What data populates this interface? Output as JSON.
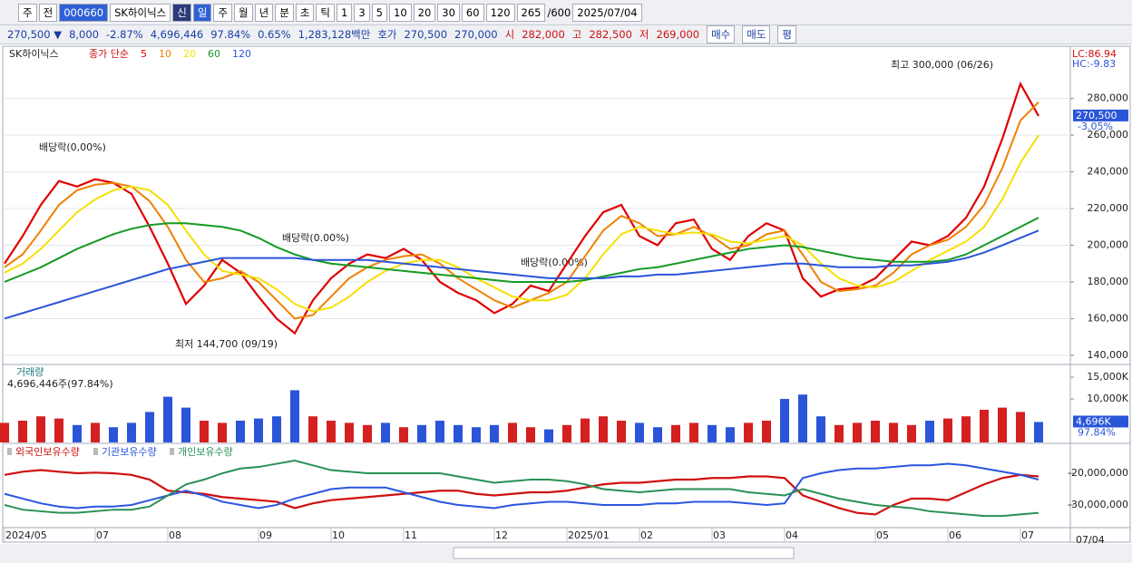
{
  "toolbar": {
    "items": [
      "주",
      "전",
      "000660",
      "SK하이닉스",
      "신",
      "일",
      "주",
      "월",
      "년",
      "분",
      "초",
      "틱",
      "1",
      "3",
      "5",
      "10",
      "20",
      "30",
      "60",
      "120"
    ],
    "count": "265",
    "total": "/600",
    "date": "2025/07/04"
  },
  "info_bar": {
    "items": [
      "270,500 ▼",
      "8,000",
      "-2.87%",
      "4,696,446",
      "97.84%",
      "0.65%",
      "1,283,128백만",
      "호가",
      "270,500",
      "270,000",
      "시",
      "282,000",
      "고",
      "282,500",
      "저",
      "269,000"
    ],
    "buttons": [
      "매수",
      "매도",
      "평"
    ]
  },
  "chart_data": [
    {
      "type": "line",
      "stock": "SK하이닉스",
      "legend_prefix": "종가 단순",
      "categories": [
        "2024/05",
        null,
        null,
        null,
        null,
        "07",
        null,
        null,
        null,
        "08",
        null,
        null,
        null,
        null,
        "09",
        null,
        null,
        null,
        "10",
        null,
        null,
        null,
        "11",
        null,
        null,
        null,
        null,
        "12",
        null,
        null,
        null,
        "2025/01",
        null,
        null,
        null,
        "02",
        null,
        null,
        null,
        "03",
        null,
        null,
        null,
        "04",
        null,
        null,
        null,
        null,
        "05",
        null,
        null,
        null,
        "06",
        null,
        null,
        null,
        "07",
        null
      ],
      "end_label": "07/04",
      "ylim": [
        136000,
        308000
      ],
      "yticks": [
        {
          "value": 140000,
          "label": "140,000"
        },
        {
          "value": 160000,
          "label": "160,000"
        },
        {
          "value": 180000,
          "label": "180,000"
        },
        {
          "value": 200000,
          "label": "200,000"
        },
        {
          "value": 220000,
          "label": "220,000"
        },
        {
          "value": 240000,
          "label": "240,000"
        },
        {
          "value": 260000,
          "label": "260,000"
        },
        {
          "value": 280000,
          "label": "280,000"
        }
      ],
      "grid": true,
      "current": {
        "value": 270500,
        "label": "270,500",
        "change": "-3.05%"
      },
      "corner_labels": [
        "LC:86.94",
        "HC:-9.83"
      ],
      "annotations": {
        "high": "최고 300,000 (06/26)",
        "low": "최저 144,700 (09/19)",
        "dividend": [
          "배당락(0,00%)",
          "배당락(0.00%)",
          "배당락(0.00%)"
        ]
      },
      "series": [
        {
          "name": "5",
          "color": "#e00000",
          "values": [
            190000,
            205000,
            222000,
            235000,
            232000,
            236000,
            234000,
            228000,
            210000,
            190000,
            168000,
            178000,
            192000,
            185000,
            172000,
            160000,
            152000,
            170000,
            182000,
            190000,
            195000,
            193000,
            198000,
            192000,
            180000,
            174000,
            170000,
            163000,
            168000,
            178000,
            175000,
            190000,
            205000,
            218000,
            222000,
            205000,
            200000,
            212000,
            214000,
            198000,
            192000,
            205000,
            212000,
            208000,
            182000,
            172000,
            176000,
            177000,
            182000,
            192000,
            202000,
            200000,
            205000,
            215000,
            232000,
            258000,
            288000,
            270500
          ]
        },
        {
          "name": "10",
          "color": "#f08000",
          "values": [
            188000,
            195000,
            208000,
            222000,
            230000,
            233000,
            234000,
            232000,
            224000,
            210000,
            192000,
            180000,
            182000,
            186000,
            180000,
            170000,
            160000,
            162000,
            172000,
            182000,
            188000,
            192000,
            194000,
            195000,
            190000,
            182000,
            176000,
            170000,
            166000,
            170000,
            174000,
            180000,
            194000,
            208000,
            216000,
            212000,
            205000,
            206000,
            210000,
            205000,
            198000,
            200000,
            206000,
            208000,
            195000,
            180000,
            175000,
            176000,
            178000,
            185000,
            195000,
            200000,
            203000,
            210000,
            222000,
            242000,
            268000,
            278000
          ]
        },
        {
          "name": "20",
          "color": "#f5e000",
          "values": [
            185000,
            190000,
            198000,
            208000,
            218000,
            225000,
            230000,
            232000,
            230000,
            222000,
            208000,
            195000,
            186000,
            184000,
            182000,
            176000,
            168000,
            164000,
            166000,
            172000,
            180000,
            186000,
            190000,
            192000,
            192000,
            188000,
            182000,
            177000,
            172000,
            170000,
            170000,
            173000,
            182000,
            195000,
            206000,
            210000,
            208000,
            206000,
            207000,
            206000,
            202000,
            201000,
            203000,
            205000,
            200000,
            190000,
            182000,
            178000,
            177000,
            180000,
            186000,
            192000,
            197000,
            202000,
            210000,
            225000,
            245000,
            260000
          ]
        },
        {
          "name": "60",
          "color": "#159a25",
          "values": [
            180000,
            184000,
            188000,
            193000,
            198000,
            202000,
            206000,
            209000,
            211000,
            212000,
            212000,
            211000,
            210000,
            208000,
            204000,
            199000,
            195000,
            192000,
            190000,
            189000,
            188000,
            187000,
            186000,
            185000,
            184000,
            183000,
            182000,
            181000,
            180000,
            180000,
            180000,
            180000,
            181000,
            183000,
            185000,
            187000,
            188000,
            190000,
            192000,
            194000,
            196000,
            198000,
            199000,
            200000,
            199000,
            197000,
            195000,
            193000,
            192000,
            191000,
            191000,
            191000,
            192000,
            195000,
            200000,
            205000,
            210000,
            215000
          ]
        },
        {
          "name": "120",
          "color": "#2a55d8",
          "values": [
            160000,
            163000,
            166000,
            169000,
            172000,
            175000,
            178000,
            181000,
            184000,
            187000,
            189000,
            191000,
            193000,
            193000,
            193000,
            193000,
            193000,
            192000,
            192000,
            192000,
            192000,
            191000,
            190000,
            189000,
            188000,
            187000,
            186000,
            185000,
            184000,
            183000,
            182000,
            182000,
            182000,
            182000,
            183000,
            183000,
            184000,
            184000,
            185000,
            186000,
            187000,
            188000,
            189000,
            190000,
            190000,
            189000,
            188000,
            188000,
            188000,
            189000,
            189000,
            190000,
            191000,
            193000,
            196000,
            200000,
            204000,
            208000
          ]
        }
      ]
    },
    {
      "type": "bar",
      "title": "거래량",
      "subtitle": "4,696,446주(97.84%)",
      "ylim": [
        0,
        17300
      ],
      "yticks": [
        {
          "value": 10000,
          "label": "10,000K"
        },
        {
          "value": 15000,
          "label": "15,000K"
        }
      ],
      "up_color": "#d42020",
      "down_color": "#2a55d8",
      "current": {
        "value": 4696,
        "label": "4,696K",
        "pct": "97.84%"
      },
      "values": [
        4500,
        5000,
        6000,
        5500,
        4000,
        4500,
        3500,
        4500,
        7000,
        10500,
        8000,
        5000,
        4500,
        5000,
        5500,
        6000,
        12000,
        6000,
        5000,
        4500,
        4000,
        4500,
        3500,
        4000,
        5000,
        4000,
        3500,
        4000,
        4500,
        3500,
        3000,
        4000,
        5500,
        6000,
        5000,
        4500,
        3500,
        4000,
        4500,
        4000,
        3500,
        4500,
        5000,
        10000,
        11000,
        6000,
        4000,
        4500,
        5000,
        4500,
        4000,
        5000,
        5500,
        6000,
        7500,
        8000,
        7000,
        4696
      ]
    },
    {
      "type": "line",
      "ylim": [
        -36600000,
        -11400000
      ],
      "yticks": [
        {
          "value": -30000000,
          "label": "-30,000,000"
        },
        {
          "value": -20000000,
          "label": "-20,000,000"
        }
      ],
      "series": [
        {
          "name": "외국인보유수량",
          "color": "#d01010",
          "values": [
            -20500000,
            -19500000,
            -19000000,
            -19500000,
            -20000000,
            -19800000,
            -20000000,
            -20500000,
            -22000000,
            -25500000,
            -26000000,
            -26500000,
            -27500000,
            -28000000,
            -28500000,
            -29000000,
            -31000000,
            -29500000,
            -28500000,
            -28000000,
            -27500000,
            -27000000,
            -26500000,
            -26000000,
            -25500000,
            -25500000,
            -26500000,
            -27000000,
            -26500000,
            -26000000,
            -26000000,
            -25500000,
            -24500000,
            -23500000,
            -23000000,
            -23000000,
            -22500000,
            -22000000,
            -22000000,
            -21500000,
            -21500000,
            -21000000,
            -21000000,
            -21500000,
            -27000000,
            -29000000,
            -31000000,
            -32500000,
            -33000000,
            -30000000,
            -28000000,
            -28000000,
            -28500000,
            -26000000,
            -23500000,
            -21500000,
            -20500000,
            -21000000
          ]
        },
        {
          "name": "기관보유수량",
          "color": "#2a55e0",
          "values": [
            -26500000,
            -28000000,
            -29500000,
            -30500000,
            -31000000,
            -30500000,
            -30500000,
            -30000000,
            -28500000,
            -27000000,
            -25500000,
            -27000000,
            -29000000,
            -30000000,
            -31000000,
            -30000000,
            -28000000,
            -26500000,
            -25000000,
            -24500000,
            -24500000,
            -24500000,
            -26000000,
            -27500000,
            -29000000,
            -30000000,
            -30500000,
            -31000000,
            -30000000,
            -29500000,
            -29000000,
            -29000000,
            -29500000,
            -30000000,
            -30000000,
            -30000000,
            -29500000,
            -29500000,
            -29000000,
            -29000000,
            -29000000,
            -29500000,
            -30000000,
            -29500000,
            -21500000,
            -20000000,
            -19000000,
            -18500000,
            -18500000,
            -18000000,
            -17500000,
            -17500000,
            -17000000,
            -17500000,
            -18500000,
            -19500000,
            -20500000,
            -22000000
          ]
        },
        {
          "name": "개인보유수량",
          "color": "#2a9055",
          "values": [
            -30000000,
            -31500000,
            -32000000,
            -32500000,
            -32500000,
            -32000000,
            -31500000,
            -31500000,
            -30500000,
            -27000000,
            -23500000,
            -22000000,
            -20000000,
            -18500000,
            -18000000,
            -17000000,
            -16000000,
            -17500000,
            -19000000,
            -19500000,
            -20000000,
            -20000000,
            -20000000,
            -20000000,
            -20000000,
            -21000000,
            -22000000,
            -23000000,
            -22500000,
            -22000000,
            -22000000,
            -22500000,
            -23500000,
            -25000000,
            -25500000,
            -26000000,
            -25500000,
            -25000000,
            -25000000,
            -25000000,
            -25000000,
            -26000000,
            -26500000,
            -27000000,
            -25000000,
            -26500000,
            -28000000,
            -29000000,
            -30000000,
            -30500000,
            -31000000,
            -32000000,
            -32500000,
            -33000000,
            -33500000,
            -33500000,
            -33000000,
            -32500000
          ]
        }
      ]
    }
  ]
}
